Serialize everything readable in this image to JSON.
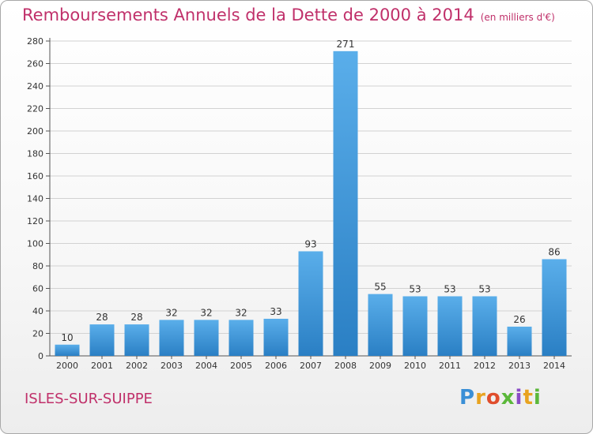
{
  "header": {
    "title": "Remboursements Annuels de la Dette de 2000 à 2014",
    "unit": "(en milliers d'€)"
  },
  "footer": {
    "commune": "ISLES-SUR-SUIPPE",
    "logo": "Proxiti"
  },
  "colors": {
    "title": "#c0306a",
    "bar_light": "#5aaeea",
    "bar_dark": "#2a7fc4"
  },
  "chart_data": {
    "type": "bar",
    "title": "Remboursements Annuels de la Dette de 2000 à 2014",
    "subtitle": "(en milliers d'€)",
    "categories": [
      "2000",
      "2001",
      "2002",
      "2003",
      "2004",
      "2005",
      "2006",
      "2007",
      "2008",
      "2009",
      "2010",
      "2011",
      "2012",
      "2013",
      "2014"
    ],
    "values": [
      10,
      28,
      28,
      32,
      32,
      32,
      33,
      93,
      271,
      55,
      53,
      53,
      53,
      26,
      86
    ],
    "ylim": [
      0,
      280
    ],
    "yticks": [
      0,
      20,
      40,
      60,
      80,
      100,
      120,
      140,
      160,
      180,
      200,
      220,
      240,
      260,
      280
    ],
    "grid": true
  }
}
